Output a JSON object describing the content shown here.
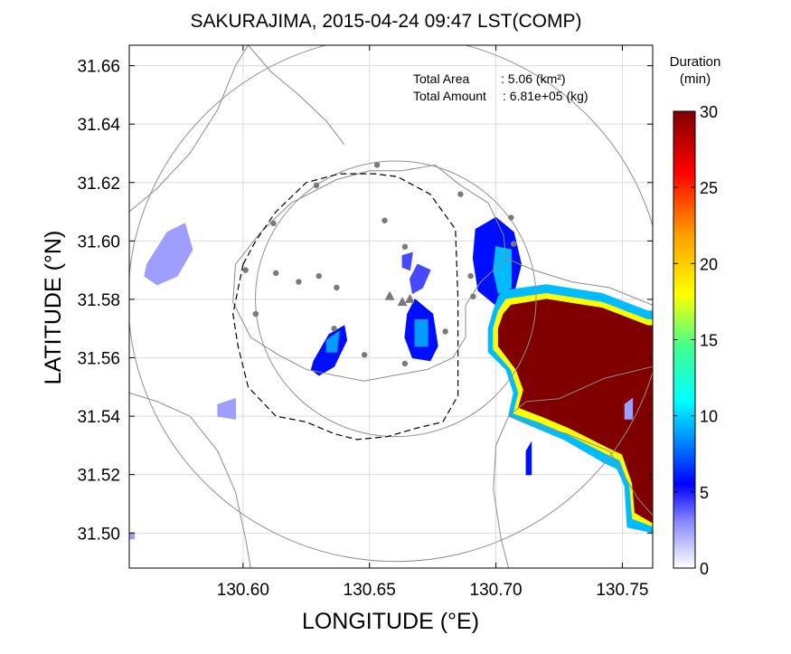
{
  "title": "SAKURAJIMA, 2015-04-24 09:47 LST(COMP)",
  "xlabel": "LONGITUDE (°E)",
  "ylabel": "LATITUDE (°N)",
  "info": {
    "total_area_label": "Total Area",
    "total_area_value": ": 5.06 (km²)",
    "total_amount_label": "Total Amount",
    "total_amount_value": ": 6.81e+05 (kg)"
  },
  "colorbar": {
    "title_line1": "Duration",
    "title_line2": "(min)",
    "range": [
      0,
      30
    ],
    "ticks": [
      "30",
      "25",
      "20",
      "15",
      "10",
      "5",
      "0"
    ],
    "stops": [
      {
        "v": 0,
        "c": "#ffffff"
      },
      {
        "v": 3,
        "c": "#8a8aff"
      },
      {
        "v": 5.5,
        "c": "#0000ff"
      },
      {
        "v": 8.5,
        "c": "#0090ff"
      },
      {
        "v": 11,
        "c": "#00ffff"
      },
      {
        "v": 14.5,
        "c": "#40ff90"
      },
      {
        "v": 18,
        "c": "#ffff00"
      },
      {
        "v": 22,
        "c": "#ff9a00"
      },
      {
        "v": 26,
        "c": "#ff0000"
      },
      {
        "v": 28.5,
        "c": "#b00000"
      },
      {
        "v": 30,
        "c": "#800000"
      }
    ]
  },
  "chart_data": {
    "type": "heatmap",
    "xlim": [
      130.555,
      130.762
    ],
    "ylim": [
      31.488,
      31.667
    ],
    "x_ticks": [
      "130.60",
      "130.65",
      "130.70",
      "130.75"
    ],
    "y_ticks": [
      "31.50",
      "31.52",
      "31.54",
      "31.56",
      "31.58",
      "31.60",
      "31.62",
      "31.64",
      "31.66"
    ],
    "grid": true,
    "volcano": [
      [
        130.658,
        31.581
      ],
      [
        130.663,
        31.579
      ],
      [
        130.666,
        31.58
      ]
    ],
    "stations": [
      [
        130.612,
        31.606
      ],
      [
        130.601,
        31.59
      ],
      [
        130.613,
        31.589
      ],
      [
        130.622,
        31.586
      ],
      [
        130.63,
        31.588
      ],
      [
        130.637,
        31.584
      ],
      [
        130.629,
        31.619
      ],
      [
        130.653,
        31.626
      ],
      [
        130.656,
        31.607
      ],
      [
        130.664,
        31.598
      ],
      [
        130.686,
        31.616
      ],
      [
        130.706,
        31.608
      ],
      [
        130.707,
        31.599
      ],
      [
        130.691,
        31.581
      ],
      [
        130.68,
        31.569
      ],
      [
        130.636,
        31.57
      ],
      [
        130.648,
        31.561
      ],
      [
        130.664,
        31.558
      ],
      [
        130.605,
        31.575
      ],
      [
        130.69,
        31.588
      ]
    ],
    "rings": [
      {
        "center": [
          130.6604,
          31.5802
        ],
        "radius_deg": 0.1058
      },
      {
        "center": [
          130.6604,
          31.5802
        ],
        "radius_deg": 0.0555
      }
    ],
    "regions": [
      {
        "name": "W1",
        "value": 2.5,
        "poly": [
          [
            130.562,
            31.592
          ],
          [
            130.57,
            31.603
          ],
          [
            130.577,
            31.606
          ],
          [
            130.58,
            31.597
          ],
          [
            130.574,
            31.588
          ],
          [
            130.566,
            31.585
          ],
          [
            130.561,
            31.588
          ]
        ]
      },
      {
        "name": "W2",
        "value": 2.5,
        "poly": [
          [
            130.59,
            31.544
          ],
          [
            130.597,
            31.546
          ],
          [
            130.597,
            31.539
          ],
          [
            130.59,
            31.54
          ]
        ]
      },
      {
        "name": "M1",
        "value": 5.8,
        "poly": [
          [
            130.628,
            31.559
          ],
          [
            130.634,
            31.568
          ],
          [
            130.64,
            31.571
          ],
          [
            130.641,
            31.566
          ],
          [
            130.636,
            31.557
          ],
          [
            130.63,
            31.554
          ],
          [
            130.627,
            31.556
          ]
        ]
      },
      {
        "name": "M1c",
        "value": 8.8,
        "poly": [
          [
            130.633,
            31.566
          ],
          [
            130.638,
            31.569
          ],
          [
            130.637,
            31.562
          ],
          [
            130.633,
            31.562
          ]
        ]
      },
      {
        "name": "M2",
        "value": 4.2,
        "poly": [
          [
            130.666,
            31.587
          ],
          [
            130.669,
            31.592
          ],
          [
            130.674,
            31.59
          ],
          [
            130.671,
            31.584
          ],
          [
            130.667,
            31.582
          ]
        ]
      },
      {
        "name": "M3",
        "value": 5.8,
        "poly": [
          [
            130.665,
            31.575
          ],
          [
            130.668,
            31.58
          ],
          [
            130.675,
            31.575
          ],
          [
            130.677,
            31.564
          ],
          [
            130.674,
            31.559
          ],
          [
            130.667,
            31.56
          ],
          [
            130.664,
            31.567
          ]
        ]
      },
      {
        "name": "M3c",
        "value": 8.8,
        "poly": [
          [
            130.668,
            31.573
          ],
          [
            130.673,
            31.573
          ],
          [
            130.673,
            31.564
          ],
          [
            130.668,
            31.564
          ]
        ]
      },
      {
        "name": "M4",
        "value": 4.2,
        "poly": [
          [
            130.663,
            31.595
          ],
          [
            130.667,
            31.596
          ],
          [
            130.666,
            31.59
          ],
          [
            130.663,
            31.591
          ]
        ]
      },
      {
        "name": "NE",
        "value": 5.8,
        "poly": [
          [
            130.692,
            31.604
          ],
          [
            130.7,
            31.608
          ],
          [
            130.707,
            31.603
          ],
          [
            130.71,
            31.592
          ],
          [
            130.707,
            31.582
          ],
          [
            130.7,
            31.578
          ],
          [
            130.693,
            31.583
          ],
          [
            130.691,
            31.594
          ]
        ]
      },
      {
        "name": "NEc",
        "value": 9.5,
        "poly": [
          [
            130.7,
            31.598
          ],
          [
            130.706,
            31.597
          ],
          [
            130.706,
            31.584
          ],
          [
            130.701,
            31.582
          ],
          [
            130.699,
            31.59
          ]
        ]
      },
      {
        "name": "SE-fringe",
        "value": 9.5,
        "poly": [
          [
            130.703,
            31.583
          ],
          [
            130.72,
            31.585
          ],
          [
            130.742,
            31.582
          ],
          [
            130.76,
            31.576
          ],
          [
            130.763,
            31.576
          ],
          [
            130.763,
            31.5
          ],
          [
            130.752,
            31.502
          ],
          [
            130.751,
            31.516
          ],
          [
            130.748,
            31.522
          ],
          [
            130.743,
            31.524
          ],
          [
            130.727,
            31.532
          ],
          [
            130.716,
            31.536
          ],
          [
            130.705,
            31.54
          ],
          [
            130.707,
            31.548
          ],
          [
            130.704,
            31.556
          ],
          [
            130.697,
            31.562
          ],
          [
            130.697,
            31.57
          ],
          [
            130.699,
            31.576
          ],
          [
            130.701,
            31.581
          ]
        ]
      },
      {
        "name": "SE-mid",
        "value": 18,
        "poly": [
          [
            130.704,
            31.58
          ],
          [
            130.72,
            31.582
          ],
          [
            130.742,
            31.579
          ],
          [
            130.76,
            31.573
          ],
          [
            130.763,
            31.573
          ],
          [
            130.763,
            31.502
          ],
          [
            130.754,
            31.505
          ],
          [
            130.753,
            31.516
          ],
          [
            130.749,
            31.525
          ],
          [
            130.744,
            31.527
          ],
          [
            130.728,
            31.534
          ],
          [
            130.717,
            31.538
          ],
          [
            130.707,
            31.541
          ],
          [
            130.709,
            31.548
          ],
          [
            130.706,
            31.556
          ],
          [
            130.699,
            31.563
          ],
          [
            130.699,
            31.57
          ],
          [
            130.701,
            31.576
          ]
        ]
      },
      {
        "name": "SE-core",
        "value": 30,
        "poly": [
          [
            130.706,
            31.578
          ],
          [
            130.72,
            31.58
          ],
          [
            130.742,
            31.577
          ],
          [
            130.76,
            31.571
          ],
          [
            130.763,
            31.571
          ],
          [
            130.763,
            31.503
          ],
          [
            130.755,
            31.507
          ],
          [
            130.754,
            31.517
          ],
          [
            130.75,
            31.527
          ],
          [
            130.745,
            31.529
          ],
          [
            130.729,
            31.536
          ],
          [
            130.718,
            31.54
          ],
          [
            130.709,
            31.543
          ],
          [
            130.711,
            31.549
          ],
          [
            130.708,
            31.556
          ],
          [
            130.701,
            31.564
          ],
          [
            130.701,
            31.57
          ],
          [
            130.703,
            31.575
          ]
        ]
      },
      {
        "name": "S1",
        "value": 5.8,
        "poly": [
          [
            130.712,
            31.528
          ],
          [
            130.714,
            31.531
          ],
          [
            130.714,
            31.52
          ],
          [
            130.712,
            31.52
          ]
        ]
      },
      {
        "name": "E-blob",
        "value": 2.5,
        "poly": [
          [
            130.751,
            31.544
          ],
          [
            130.754,
            31.546
          ],
          [
            130.754,
            31.539
          ],
          [
            130.751,
            31.539
          ]
        ]
      },
      {
        "name": "edge",
        "value": 2.5,
        "poly": [
          [
            130.555,
            31.5
          ],
          [
            130.557,
            31.5
          ],
          [
            130.557,
            31.498
          ],
          [
            130.555,
            31.498
          ]
        ]
      }
    ],
    "coast": [
      [
        [
          130.596,
          31.579
        ],
        [
          130.597,
          31.592
        ],
        [
          130.607,
          31.603
        ],
        [
          130.619,
          31.613
        ],
        [
          130.637,
          31.621
        ],
        [
          130.65,
          31.624
        ],
        [
          130.663,
          31.624
        ],
        [
          130.676,
          31.626
        ],
        [
          130.686,
          31.619
        ],
        [
          130.697,
          31.613
        ],
        [
          130.703,
          31.602
        ],
        [
          130.704,
          31.594
        ],
        [
          130.694,
          31.586
        ],
        [
          130.688,
          31.578
        ],
        [
          130.688,
          31.567
        ],
        [
          130.683,
          31.56
        ],
        [
          130.673,
          31.556
        ],
        [
          130.66,
          31.554
        ],
        [
          130.648,
          31.552
        ],
        [
          130.636,
          31.554
        ],
        [
          130.625,
          31.556
        ],
        [
          130.614,
          31.561
        ],
        [
          130.603,
          31.567
        ],
        [
          130.596,
          31.579
        ]
      ],
      [
        [
          130.704,
          31.594
        ],
        [
          130.715,
          31.59
        ],
        [
          130.73,
          31.586
        ],
        [
          130.745,
          31.584
        ],
        [
          130.762,
          31.578
        ]
      ],
      [
        [
          130.705,
          31.54
        ],
        [
          130.715,
          31.537
        ],
        [
          130.728,
          31.534
        ],
        [
          130.745,
          31.528
        ],
        [
          130.756,
          31.512
        ],
        [
          130.762,
          31.506
        ]
      ],
      [
        [
          130.705,
          31.54
        ],
        [
          130.7,
          31.53
        ],
        [
          130.699,
          31.515
        ],
        [
          130.702,
          31.498
        ],
        [
          130.705,
          31.488
        ]
      ],
      [
        [
          130.555,
          31.61
        ],
        [
          130.566,
          31.618
        ],
        [
          130.579,
          31.63
        ],
        [
          130.59,
          31.645
        ],
        [
          130.597,
          31.66
        ],
        [
          130.602,
          31.667
        ]
      ],
      [
        [
          130.602,
          31.667
        ],
        [
          130.611,
          31.658
        ],
        [
          130.622,
          31.65
        ],
        [
          130.633,
          31.641
        ],
        [
          130.64,
          31.633
        ]
      ],
      [
        [
          130.555,
          31.548
        ],
        [
          130.566,
          31.545
        ],
        [
          130.579,
          31.54
        ],
        [
          130.59,
          31.528
        ],
        [
          130.597,
          31.514
        ],
        [
          130.601,
          31.498
        ],
        [
          130.603,
          31.488
        ]
      ],
      [
        [
          130.705,
          31.54
        ],
        [
          130.712,
          31.545
        ],
        [
          130.725,
          31.546
        ],
        [
          130.743,
          31.553
        ],
        [
          130.762,
          31.557
        ]
      ]
    ],
    "dashed_outline": [
      [
        130.6,
        31.592
      ],
      [
        130.605,
        31.6
      ],
      [
        130.613,
        31.61
      ],
      [
        130.625,
        31.62
      ],
      [
        130.638,
        31.623
      ],
      [
        130.652,
        31.623
      ],
      [
        130.661,
        31.622
      ],
      [
        130.674,
        31.616
      ],
      [
        130.684,
        31.604
      ],
      [
        130.685,
        31.58
      ],
      [
        130.685,
        31.56
      ],
      [
        130.685,
        31.547
      ],
      [
        130.679,
        31.538
      ],
      [
        130.669,
        31.536
      ],
      [
        130.657,
        31.533
      ],
      [
        130.645,
        31.532
      ],
      [
        130.636,
        31.534
      ],
      [
        130.625,
        31.538
      ],
      [
        130.613,
        31.54
      ],
      [
        130.602,
        31.55
      ],
      [
        130.598,
        31.564
      ],
      [
        130.596,
        31.575
      ],
      [
        130.6,
        31.592
      ]
    ]
  }
}
